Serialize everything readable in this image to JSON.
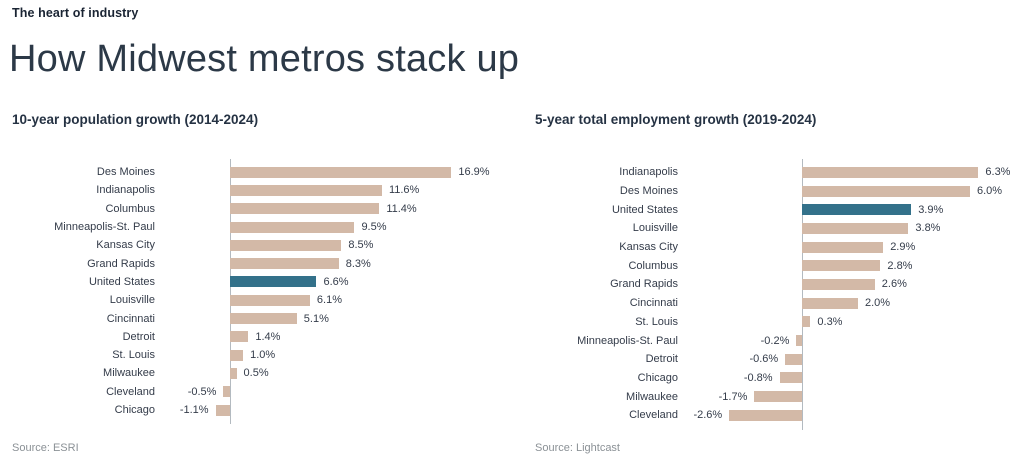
{
  "header": {
    "kicker": "The heart of industry",
    "title": "How Midwest metros stack up"
  },
  "colors": {
    "bar": "#d3b9a7",
    "highlight": "#33718a",
    "axis": "#b3bac0"
  },
  "chart_data": [
    {
      "type": "bar",
      "orientation": "horizontal",
      "title": "10-year population growth (2014-2024)",
      "source": "Source: ESRI",
      "categories": [
        "Des Moines",
        "Indianapolis",
        "Columbus",
        "Minneapolis-St. Paul",
        "Kansas City",
        "Grand Rapids",
        "United States",
        "Louisville",
        "Cincinnati",
        "Detroit",
        "St. Louis",
        "Milwaukee",
        "Cleveland",
        "Chicago"
      ],
      "values": [
        16.9,
        11.6,
        11.4,
        9.5,
        8.5,
        8.3,
        6.6,
        6.1,
        5.1,
        1.4,
        1.0,
        0.5,
        -0.5,
        -1.1
      ],
      "value_labels": [
        "16.9%",
        "11.6%",
        "11.4%",
        "9.5%",
        "8.5%",
        "8.3%",
        "6.6%",
        "6.1%",
        "5.1%",
        "1.4%",
        "1.0%",
        "0.5%",
        "-0.5%",
        "-1.1%"
      ],
      "highlight_index": 6,
      "highlight_category": "United States",
      "bar_color": "#d3b9a7",
      "highlight_color": "#33718a",
      "xlim": [
        -2,
        18.5
      ],
      "grid": false,
      "legend": false
    },
    {
      "type": "bar",
      "orientation": "horizontal",
      "title": "5-year total employment growth (2019-2024)",
      "source": "Source: Lightcast",
      "categories": [
        "Indianapolis",
        "Des Moines",
        "United States",
        "Louisville",
        "Kansas City",
        "Columbus",
        "Grand Rapids",
        "Cincinnati",
        "St. Louis",
        "Minneapolis-St. Paul",
        "Detroit",
        "Chicago",
        "Milwaukee",
        "Cleveland"
      ],
      "values": [
        6.3,
        6.0,
        3.9,
        3.8,
        2.9,
        2.8,
        2.6,
        2.0,
        0.3,
        -0.2,
        -0.6,
        -0.8,
        -1.7,
        -2.6
      ],
      "value_labels": [
        "6.3%",
        "6.0%",
        "3.9%",
        "3.8%",
        "2.9%",
        "2.8%",
        "2.6%",
        "2.0%",
        "0.3%",
        "-0.2%",
        "-0.6%",
        "-0.8%",
        "-1.7%",
        "-2.6%"
      ],
      "highlight_index": 2,
      "highlight_category": "United States",
      "bar_color": "#d3b9a7",
      "highlight_color": "#33718a",
      "xlim": [
        -3.5,
        7
      ],
      "grid": false,
      "legend": false
    }
  ]
}
